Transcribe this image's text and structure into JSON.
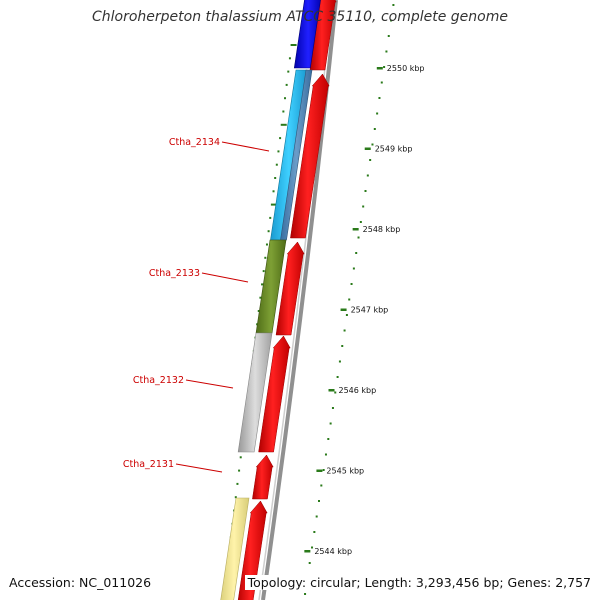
{
  "title": "Chloroherpeton thalassium ATCC 35110, complete genome",
  "footer": {
    "accession": "Accession: NC_011026",
    "topology": "Topology: circular; Length: 3,293,456 bp; Genes: 2,757"
  },
  "ticks": [
    {
      "label": "2550 kbp",
      "kbp": 2550
    },
    {
      "label": "2549 kbp",
      "kbp": 2549
    },
    {
      "label": "2548 kbp",
      "kbp": 2548
    },
    {
      "label": "2547 kbp",
      "kbp": 2547
    },
    {
      "label": "2546 kbp",
      "kbp": 2546
    },
    {
      "label": "2545 kbp",
      "kbp": 2545
    },
    {
      "label": "2544 kbp",
      "kbp": 2544
    }
  ],
  "colors": {
    "cds": "#ee0000",
    "blue": "#1010dd",
    "cyan": "#22bbee",
    "olive": "#6b8e23",
    "grey": "#bbbbbb",
    "khaki": "#f0e68c",
    "tick": "#2a7a1a",
    "backbone": "#888888",
    "label": "#cc0000"
  },
  "genes": [
    {
      "label": "Ctha_2134"
    },
    {
      "label": "Ctha_2133"
    },
    {
      "label": "Ctha_2132"
    },
    {
      "label": "Ctha_2131"
    }
  ]
}
